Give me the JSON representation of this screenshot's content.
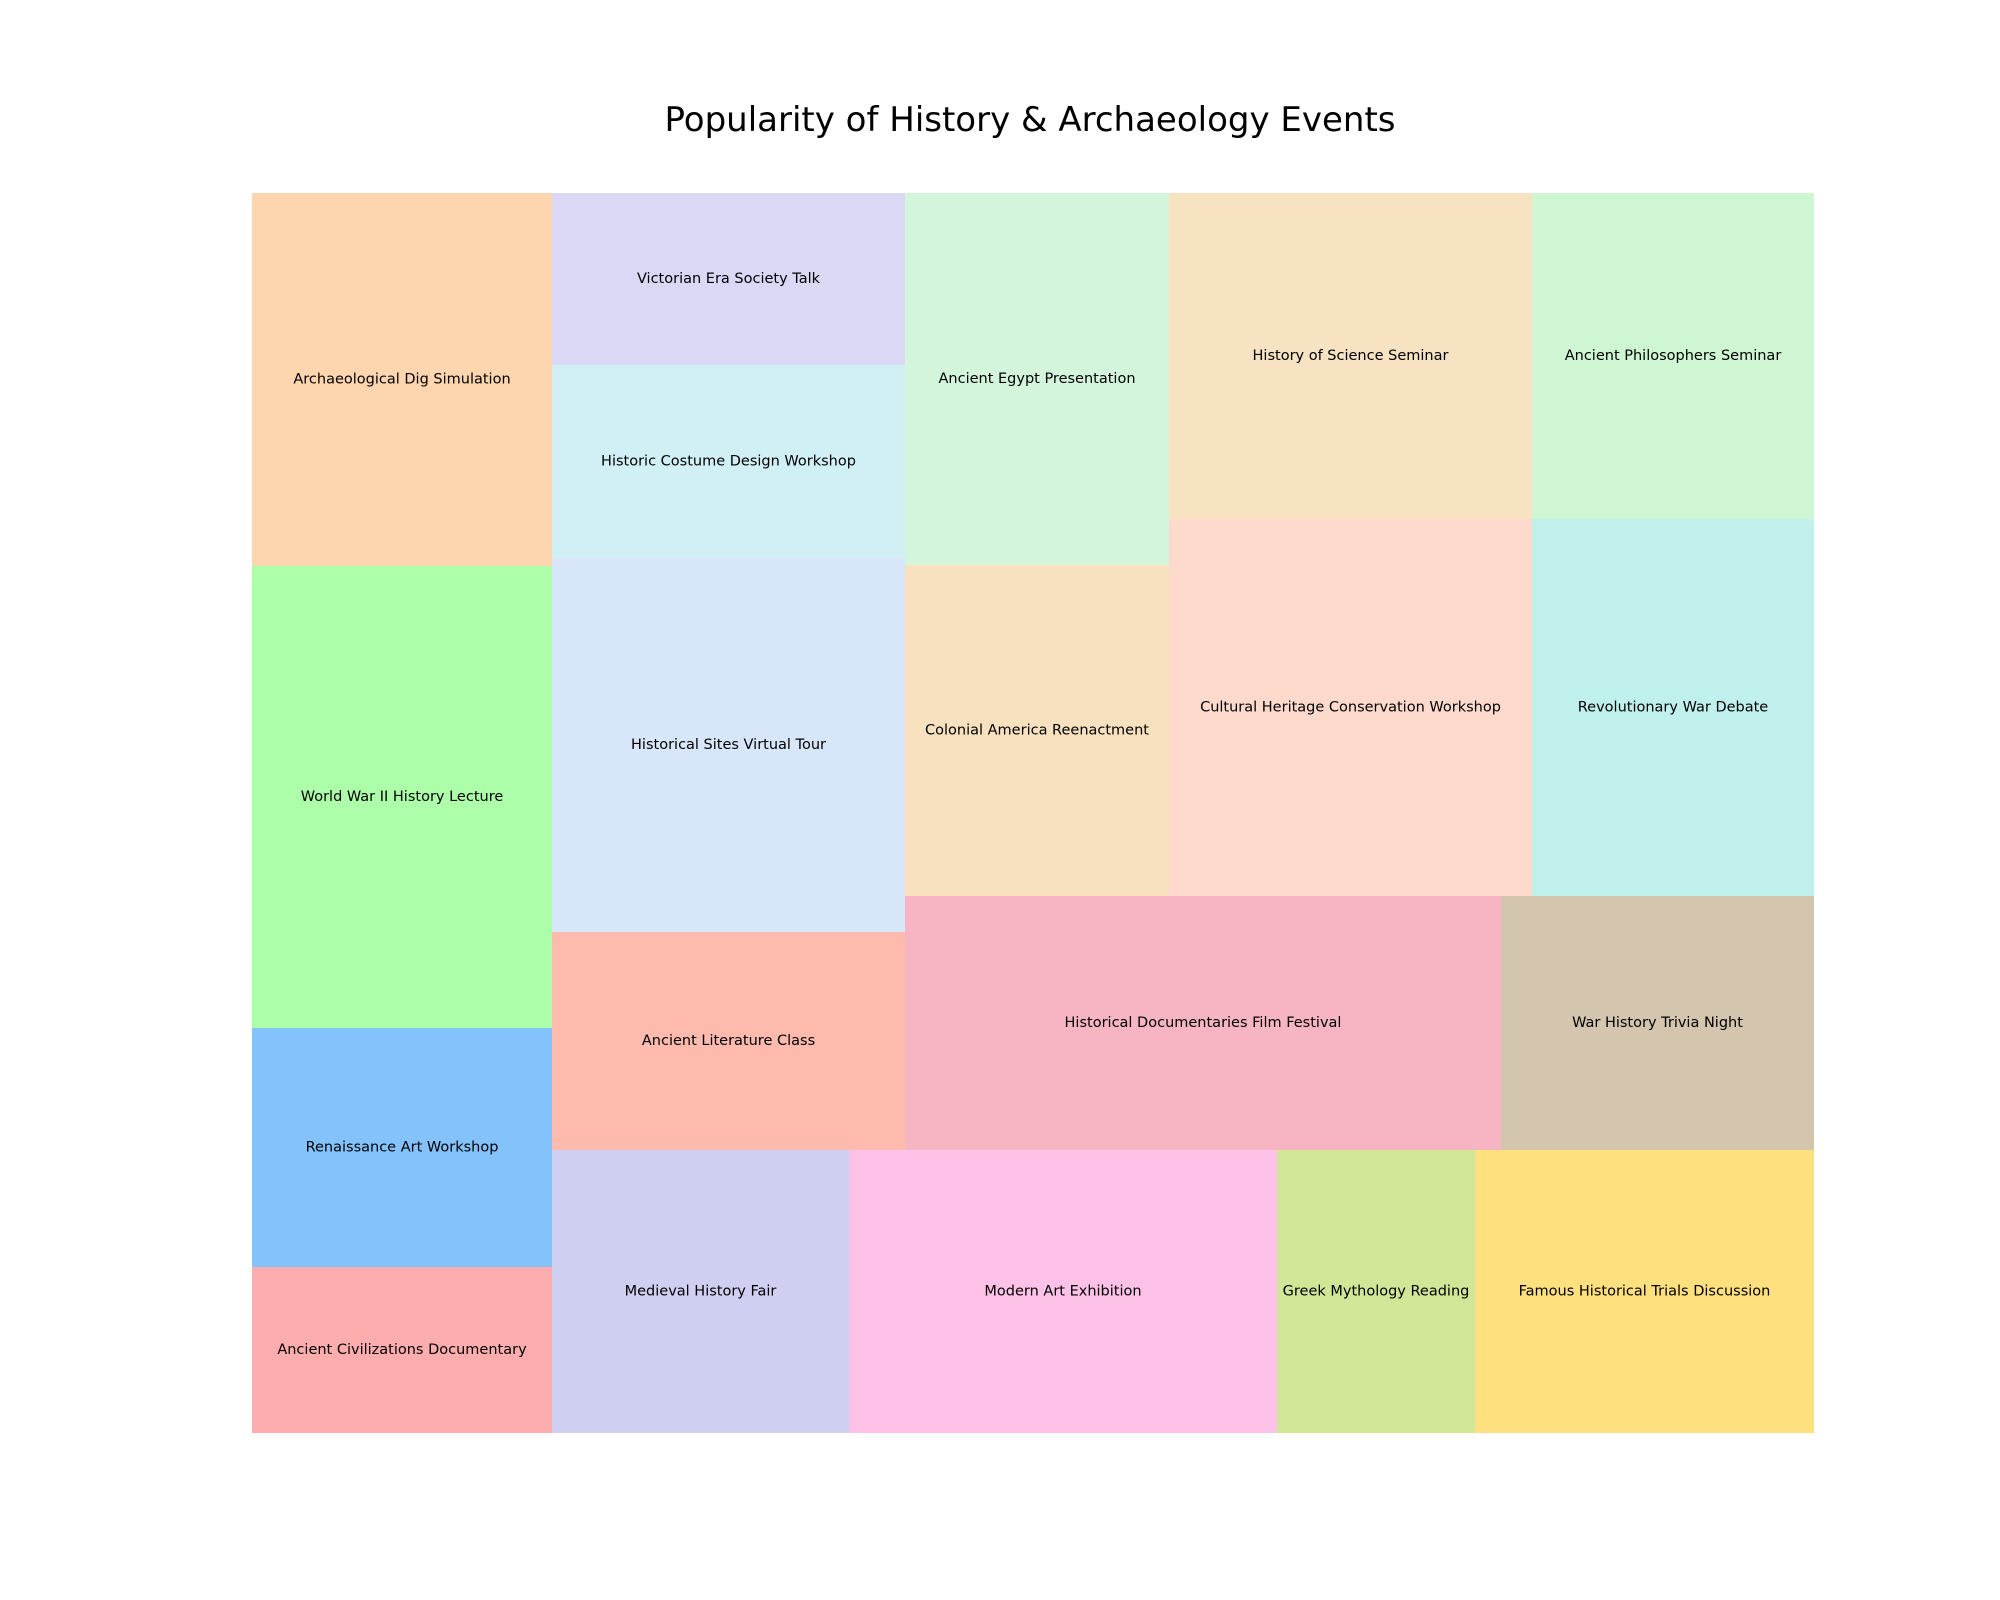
{
  "chart_data": {
    "type": "treemap",
    "title": "Popularity of History & Archaeology Events",
    "tiles": [
      {
        "label": "Archaeological Dig Simulation",
        "color": "#fdd5ae"
      },
      {
        "label": "World War II History Lecture",
        "color": "#adfea8"
      },
      {
        "label": "Renaissance Art Workshop",
        "color": "#84c2fc"
      },
      {
        "label": "Ancient Civilizations Documentary",
        "color": "#feadae"
      },
      {
        "label": "Victorian Era Society Talk",
        "color": "#dbd8f6"
      },
      {
        "label": "Historic Costume Design Workshop",
        "color": "#d1f0f6"
      },
      {
        "label": "Historical Sites Virtual Tour",
        "color": "#d8e6f9"
      },
      {
        "label": "Ancient Literature Class",
        "color": "#fdbaad"
      },
      {
        "label": "Ancient Egypt Presentation",
        "color": "#d3f5dc"
      },
      {
        "label": "Colonial America Reenactment",
        "color": "#f7e1be"
      },
      {
        "label": "History of Science Seminar",
        "color": "#f7e2c2"
      },
      {
        "label": "Cultural Heritage Conservation Workshop",
        "color": "#fedacd"
      },
      {
        "label": "Ancient Philosophers Seminar",
        "color": "#cff6d2"
      },
      {
        "label": "Revolutionary War Debate",
        "color": "#bff0ec"
      },
      {
        "label": "Historical Documentaries Film Festival",
        "color": "#f7b5c3"
      },
      {
        "label": "War History Trivia Night",
        "color": "#d3c5ae"
      },
      {
        "label": "Medieval History Fair",
        "color": "#cfcff1"
      },
      {
        "label": "Modern Art Exhibition",
        "color": "#fec1e7"
      },
      {
        "label": "Greek Mythology Reading",
        "color": "#d1e797"
      },
      {
        "label": "Famous Historical Trials Discussion",
        "color": "#fee07e"
      }
    ]
  }
}
